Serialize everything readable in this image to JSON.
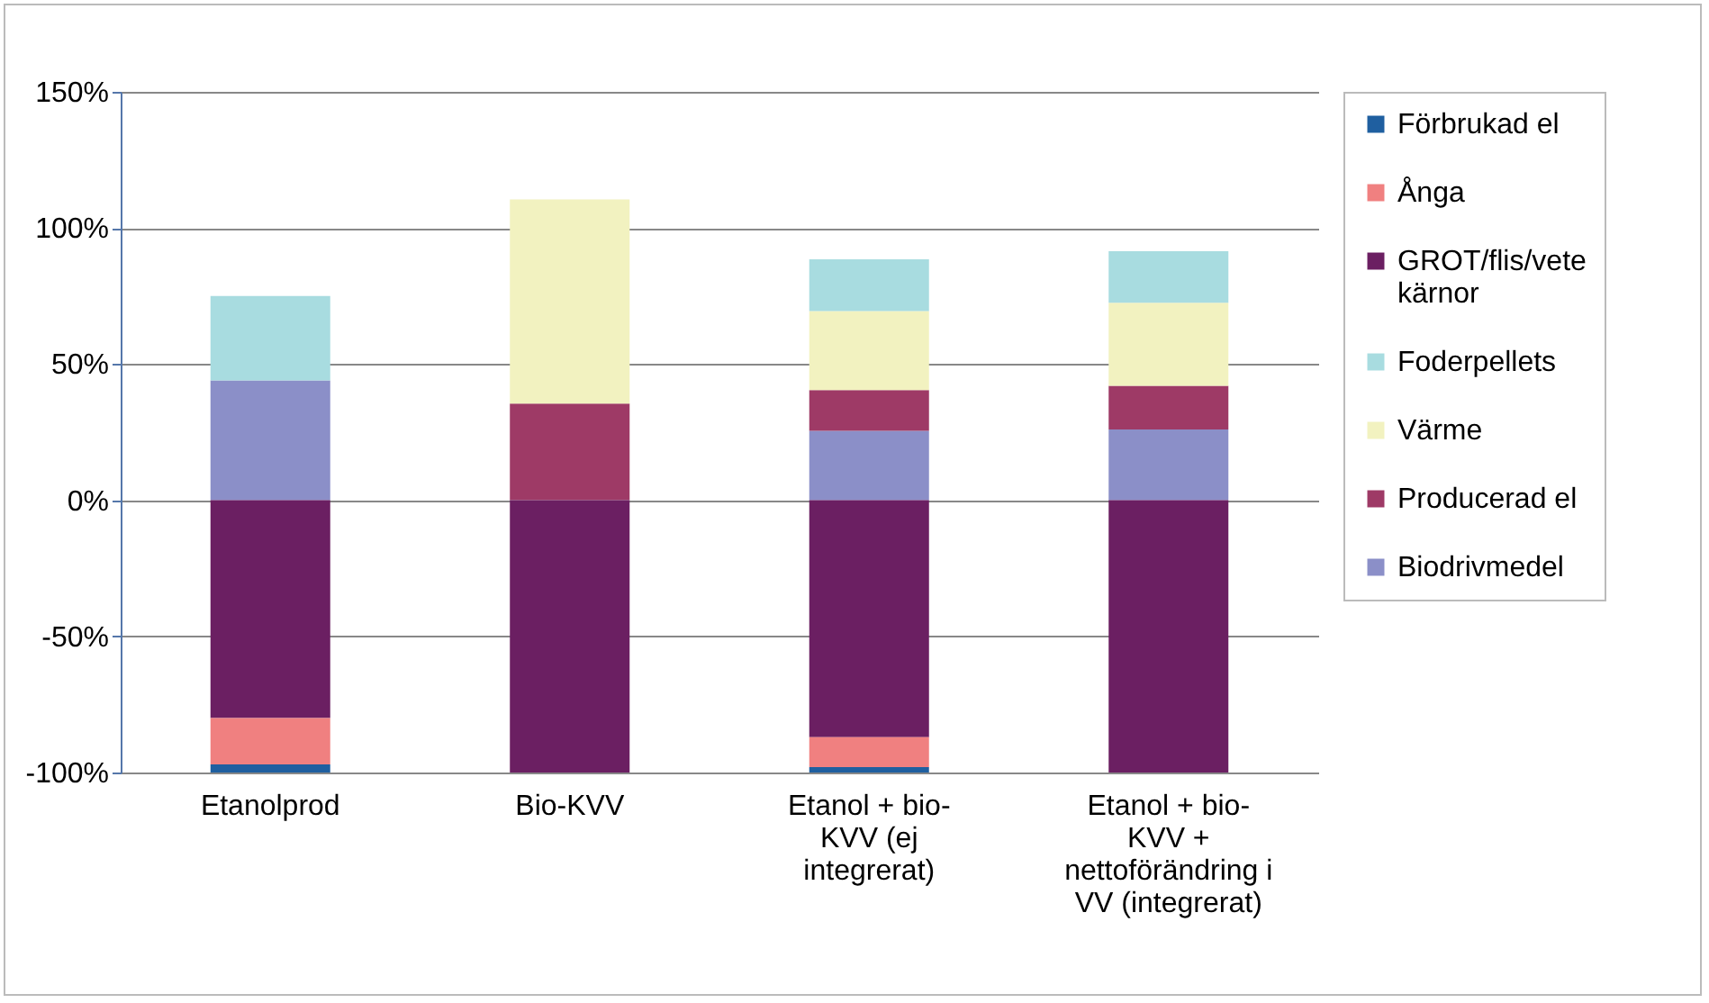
{
  "chart_data": {
    "type": "bar",
    "stacked": true,
    "categories": [
      "Etanolprod",
      "Bio-KVV",
      "Etanol + bio-KVV (ej integrerat)",
      "Etanol + bio-KVV + nettoförändring i VV (integrerat)"
    ],
    "series": [
      {
        "name": "Biodrivmedel",
        "color": "#8b8fc8",
        "values": [
          44,
          0,
          25.5,
          26
        ]
      },
      {
        "name": "Producerad el",
        "color": "#9e3a66",
        "values": [
          0,
          35.5,
          15,
          16
        ]
      },
      {
        "name": "Värme",
        "color": "#f2f2c0",
        "values": [
          0,
          75,
          29,
          30.5
        ]
      },
      {
        "name": "Foderpellets",
        "color": "#a8dce0",
        "values": [
          31,
          0,
          19,
          19
        ]
      },
      {
        "name": "GROT/flis/vete kärnor",
        "color": "#6b1f62",
        "values": [
          -80,
          -100,
          -87,
          -100
        ]
      },
      {
        "name": "Ånga",
        "color": "#f08080",
        "values": [
          -17,
          0,
          -11,
          0
        ]
      },
      {
        "name": "Förbrukad el",
        "color": "#1f5fa0",
        "values": [
          -3,
          0,
          -2,
          0
        ]
      }
    ],
    "ylim": [
      -100,
      150
    ],
    "yticks": [
      {
        "value": -100,
        "label": "-100%"
      },
      {
        "value": -50,
        "label": "-50%"
      },
      {
        "value": 0,
        "label": "0%"
      },
      {
        "value": 50,
        "label": "50%"
      },
      {
        "value": 100,
        "label": "100%"
      },
      {
        "value": 150,
        "label": "150%"
      }
    ],
    "grid": "y",
    "legend": "right"
  }
}
